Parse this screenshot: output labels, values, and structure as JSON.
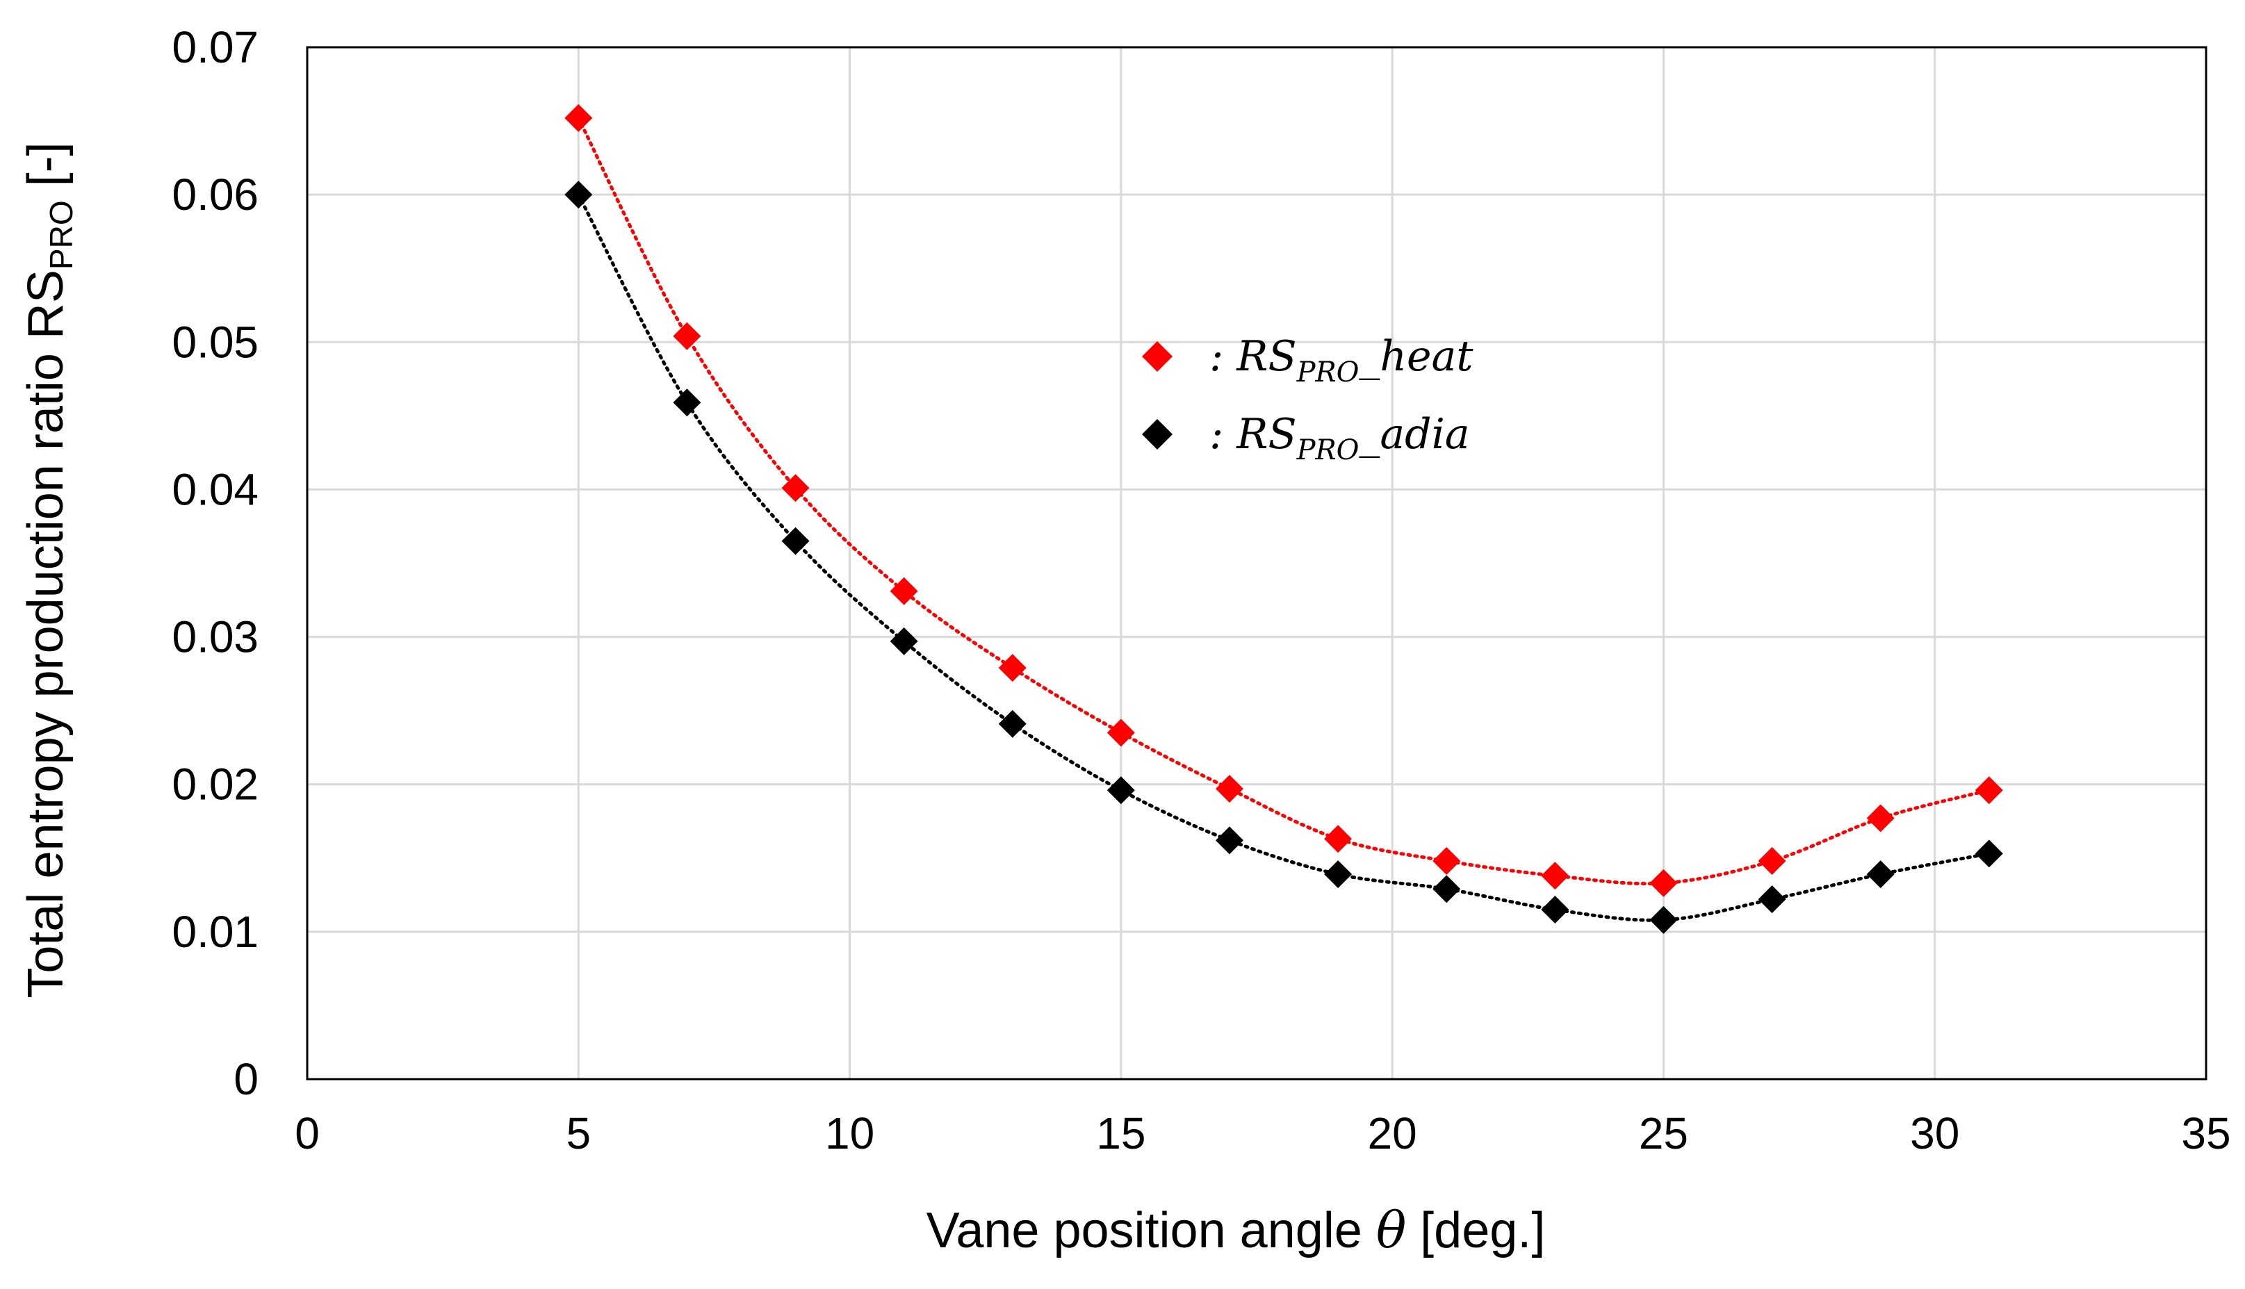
{
  "chart_data": {
    "type": "scatter",
    "title": "",
    "xlabel": {
      "main": "Vane position angle ",
      "symbol": "θ",
      "unit": " [deg.]"
    },
    "ylabel": {
      "main": "Total entropy production ratio RS",
      "subscript": "PRO",
      "unit": " [-]"
    },
    "xlim": [
      0,
      35
    ],
    "ylim": [
      0,
      0.07
    ],
    "xticks": [
      "0",
      "5",
      "10",
      "15",
      "20",
      "25",
      "30",
      "35"
    ],
    "yticks": [
      "0",
      "0.01",
      "0.02",
      "0.03",
      "0.04",
      "0.05",
      "0.06",
      "0.07"
    ],
    "grid": true,
    "legend_position": "center",
    "x": [
      5,
      7,
      9,
      11,
      13,
      15,
      17,
      19,
      21,
      23,
      25,
      27,
      29,
      31
    ],
    "series": [
      {
        "name_prefix": ": RS",
        "name_sub": "PRO",
        "name_suffix": "_heat",
        "color": "#ff0000",
        "marker": "diamond",
        "trendline": "dotted",
        "values": [
          0.0652,
          0.0504,
          0.0401,
          0.0331,
          0.0279,
          0.0235,
          0.0197,
          0.0163,
          0.0148,
          0.0138,
          0.0133,
          0.0148,
          0.0177,
          0.0196
        ]
      },
      {
        "name_prefix": ": RS",
        "name_sub": "PRO",
        "name_suffix": "_adia",
        "color": "#000000",
        "marker": "diamond",
        "trendline": "dotted",
        "values": [
          0.06,
          0.0459,
          0.0365,
          0.0297,
          0.0241,
          0.0196,
          0.0162,
          0.0139,
          0.0129,
          0.0115,
          0.0108,
          0.0122,
          0.0139,
          0.0153
        ]
      }
    ]
  }
}
